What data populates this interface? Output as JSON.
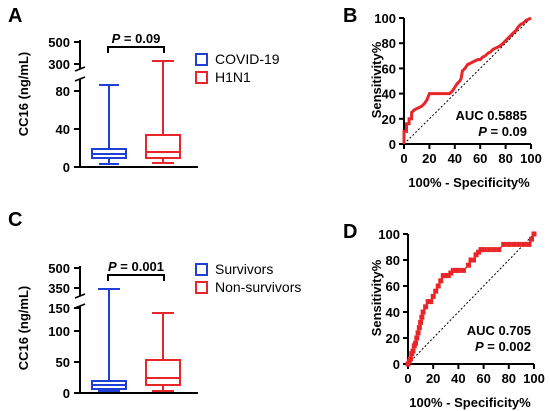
{
  "colors": {
    "blue": "#1f3fd6",
    "red": "#e8262a",
    "black": "#000000"
  },
  "chart_data": [
    {
      "panel": "A",
      "type": "box",
      "ylabel": "CC16 (ng/mL)",
      "y_ticks_lower": [
        "0",
        "40",
        "80"
      ],
      "y_ticks_upper": [
        "300",
        "500"
      ],
      "axis_break": true,
      "annotation": {
        "label": "P = 0.09",
        "p_value": "0.09"
      },
      "series": [
        {
          "name": "COVID-19",
          "color": "#1f3fd6",
          "min": 2,
          "q1": 9,
          "median": 13,
          "q3": 19,
          "max": 88
        },
        {
          "name": "H1N1",
          "color": "#e8262a",
          "min": 3,
          "q1": 9,
          "median": 15,
          "q3": 33,
          "max": 330
        }
      ]
    },
    {
      "panel": "B",
      "type": "line",
      "xlabel": "100% - Specificity%",
      "ylabel": "Sensitivity%",
      "xlim": [
        0,
        100
      ],
      "ylim": [
        0,
        100
      ],
      "x_ticks": [
        "0",
        "20",
        "40",
        "60",
        "80",
        "100"
      ],
      "y_ticks": [
        "0",
        "20",
        "40",
        "60",
        "80",
        "100"
      ],
      "auc_label": "AUC 0.5885",
      "p_label": "P = 0.09",
      "series": [
        {
          "color": "#e8262a",
          "x": [
            0,
            0,
            2,
            2,
            4,
            4,
            6,
            6,
            8,
            10,
            12,
            14,
            16,
            18,
            20,
            22,
            24,
            26,
            28,
            30,
            32,
            34,
            36,
            38,
            40,
            42,
            44,
            45,
            46,
            48,
            50,
            52,
            54,
            56,
            58,
            60,
            62,
            64,
            66,
            68,
            70,
            72,
            74,
            76,
            78,
            80,
            82,
            84,
            86,
            88,
            90,
            92,
            94,
            96,
            98,
            100
          ],
          "y": [
            0,
            10,
            10,
            16,
            16,
            20,
            20,
            25,
            27,
            28,
            29,
            30,
            32,
            35,
            40,
            40,
            40,
            40,
            40,
            40,
            40,
            40,
            40,
            42,
            45,
            48,
            50,
            52,
            58,
            60,
            63,
            64,
            65,
            66,
            67,
            67,
            69,
            70,
            72,
            73,
            75,
            76,
            77,
            78,
            80,
            82,
            84,
            86,
            88,
            90,
            93,
            95,
            96,
            98,
            99,
            100
          ]
        }
      ]
    },
    {
      "panel": "C",
      "type": "box",
      "ylabel": "CC16 (ng/mL)",
      "y_ticks_lower": [
        "0",
        "50",
        "100",
        "150"
      ],
      "y_ticks_upper": [
        "350",
        "500"
      ],
      "axis_break": true,
      "annotation": {
        "label": "P = 0.001",
        "p_value": "0.001"
      },
      "series": [
        {
          "name": "Survivors",
          "color": "#1f3fd6",
          "min": 2,
          "q1": 8,
          "median": 13,
          "q3": 20,
          "max": 330
        },
        {
          "name": "Non-survivors",
          "color": "#e8262a",
          "min": 3,
          "q1": 13,
          "median": 22,
          "q3": 53,
          "max": 128
        }
      ]
    },
    {
      "panel": "D",
      "type": "line",
      "xlabel": "100% - Specificity%",
      "ylabel": "Sensitivity%",
      "xlim": [
        0,
        100
      ],
      "ylim": [
        0,
        100
      ],
      "x_ticks": [
        "0",
        "20",
        "40",
        "60",
        "80",
        "100"
      ],
      "y_ticks": [
        "0",
        "20",
        "40",
        "60",
        "80",
        "100"
      ],
      "auc_label": "AUC 0.705",
      "p_label": "P = 0.002",
      "series": [
        {
          "color": "#e8262a",
          "x": [
            0,
            1,
            2,
            3,
            4,
            5,
            6,
            7,
            8,
            9,
            10,
            11,
            12,
            14,
            16,
            18,
            20,
            22,
            24,
            26,
            28,
            30,
            32,
            34,
            36,
            38,
            40,
            44,
            48,
            50,
            52,
            54,
            56,
            58,
            60,
            64,
            68,
            72,
            76,
            80,
            84,
            88,
            92,
            96,
            98,
            100
          ],
          "y": [
            0,
            2,
            4,
            8,
            10,
            14,
            16,
            20,
            24,
            28,
            32,
            36,
            40,
            44,
            48,
            48,
            52,
            56,
            60,
            64,
            68,
            68,
            68,
            70,
            72,
            72,
            72,
            72,
            76,
            80,
            80,
            84,
            86,
            88,
            88,
            88,
            88,
            88,
            92,
            92,
            92,
            92,
            92,
            92,
            96,
            100
          ]
        }
      ]
    }
  ],
  "panels": {
    "A": {
      "letter": "A"
    },
    "B": {
      "letter": "B"
    },
    "C": {
      "letter": "C"
    },
    "D": {
      "letter": "D"
    }
  }
}
